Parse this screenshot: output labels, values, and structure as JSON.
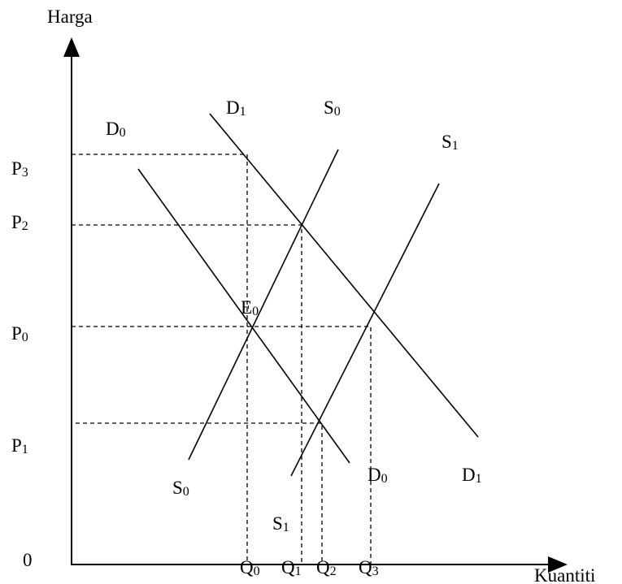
{
  "axes": {
    "y_label": "Harga",
    "x_label": "Kuantiti",
    "origin": "0"
  },
  "prices": [
    {
      "main": "P",
      "sub": "3"
    },
    {
      "main": "P",
      "sub": "2"
    },
    {
      "main": "P",
      "sub": "0"
    },
    {
      "main": "P",
      "sub": "1"
    }
  ],
  "quantities": [
    {
      "main": "Q",
      "sub": "0"
    },
    {
      "main": "Q",
      "sub": "1"
    },
    {
      "main": "Q",
      "sub": "2"
    },
    {
      "main": "Q",
      "sub": "3"
    }
  ],
  "curve_labels": [
    {
      "main": "D",
      "sub": "1"
    },
    {
      "main": "S",
      "sub": "0"
    },
    {
      "main": "D",
      "sub": "0"
    },
    {
      "main": "S",
      "sub": "1"
    },
    {
      "main": "S",
      "sub": "0"
    },
    {
      "main": "S",
      "sub": "1"
    },
    {
      "main": "D",
      "sub": "0"
    },
    {
      "main": "D",
      "sub": "1"
    }
  ],
  "point": {
    "main": "E",
    "sub": "0"
  }
}
